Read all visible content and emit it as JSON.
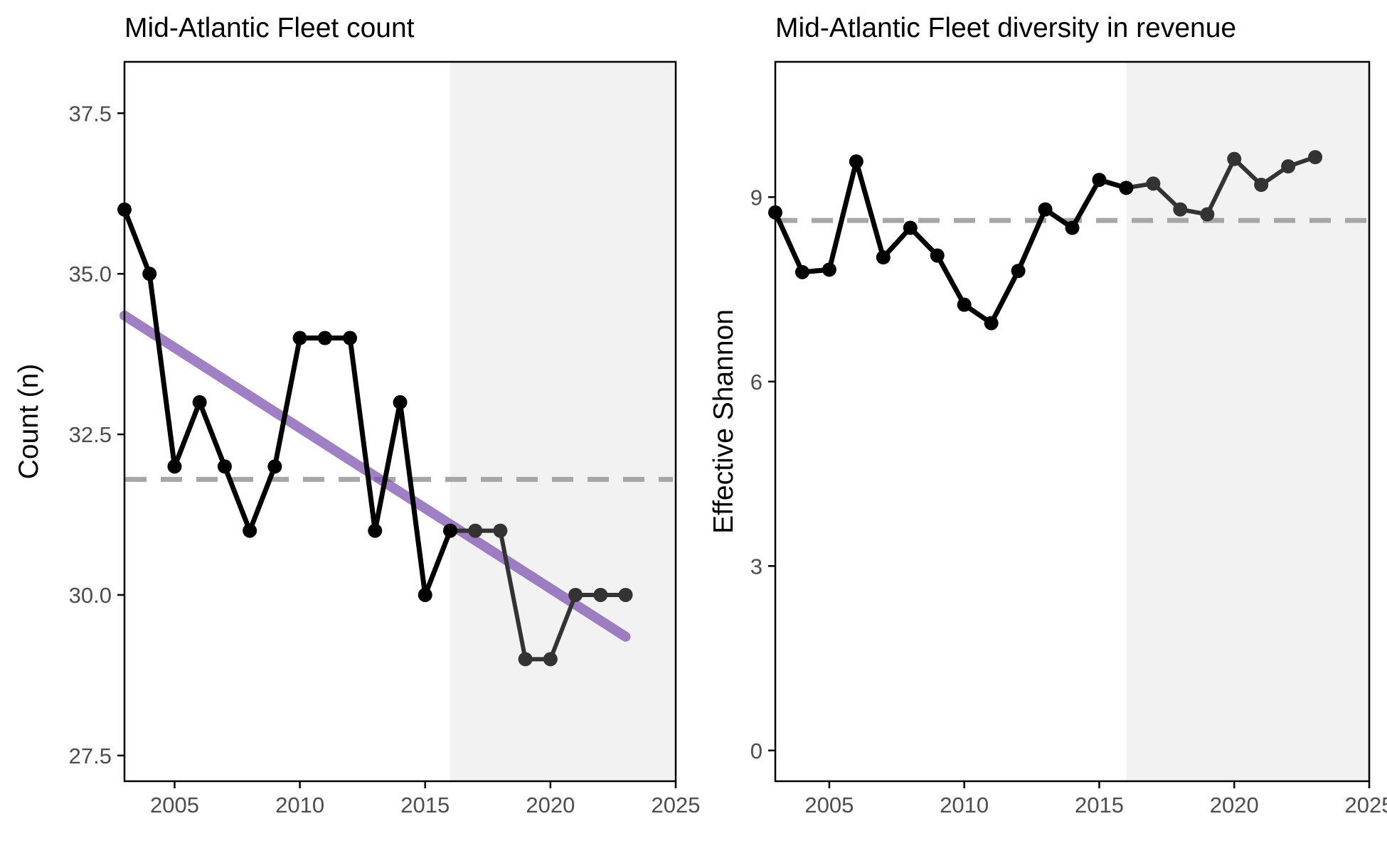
{
  "chart_data": [
    {
      "type": "line",
      "title": "Mid-Atlantic Fleet count",
      "xlabel": "",
      "ylabel": "Count (n)",
      "xlim": [
        2003,
        2025
      ],
      "ylim": [
        27.1,
        38.3
      ],
      "x_ticks": [
        "2005",
        "2010",
        "2015",
        "2020",
        "2025"
      ],
      "y_ticks": [
        "27.5",
        "30.0",
        "32.5",
        "35.0",
        "37.5"
      ],
      "grid": false,
      "legend": "none",
      "shaded_region": {
        "x_start": 2016,
        "x_end": 2025,
        "color": "#f2f2f2"
      },
      "mean_line": {
        "y": 31.8,
        "style": "dashed",
        "color": "#a6a6a6"
      },
      "trend_line": {
        "x": [
          2003,
          2023
        ],
        "y": [
          34.35,
          29.35
        ],
        "color": "#7b4fae"
      },
      "series": [
        {
          "x": [
            2003,
            2004,
            2005,
            2006,
            2007,
            2008,
            2009,
            2010,
            2011,
            2012,
            2013,
            2014,
            2015,
            2016,
            2017,
            2018,
            2019,
            2020,
            2021,
            2022,
            2023
          ],
          "values": [
            36,
            35,
            32,
            33,
            32,
            31,
            32,
            34,
            34,
            34,
            31,
            33,
            30,
            31,
            31,
            31,
            29,
            29,
            30,
            30,
            30
          ]
        }
      ]
    },
    {
      "type": "line",
      "title": "Mid-Atlantic Fleet diversity in revenue",
      "xlabel": "",
      "ylabel": "Effective Shannon",
      "xlim": [
        2003,
        2025
      ],
      "ylim": [
        -0.5,
        11.2
      ],
      "x_ticks": [
        "2005",
        "2010",
        "2015",
        "2020",
        "2025"
      ],
      "y_ticks": [
        "0",
        "3",
        "6",
        "9"
      ],
      "grid": false,
      "legend": "none",
      "shaded_region": {
        "x_start": 2016,
        "x_end": 2025,
        "color": "#f2f2f2"
      },
      "mean_line": {
        "y": 8.62,
        "style": "dashed",
        "color": "#a6a6a6"
      },
      "series": [
        {
          "x": [
            2003,
            2004,
            2005,
            2006,
            2007,
            2008,
            2009,
            2010,
            2011,
            2012,
            2013,
            2014,
            2015,
            2016,
            2017,
            2018,
            2019,
            2020,
            2021,
            2022,
            2023
          ],
          "values": [
            8.75,
            7.78,
            7.82,
            9.58,
            8.02,
            8.5,
            8.05,
            7.25,
            6.95,
            7.8,
            8.8,
            8.5,
            9.28,
            9.15,
            9.22,
            8.8,
            8.72,
            9.62,
            9.2,
            9.5,
            9.65
          ]
        }
      ]
    }
  ],
  "colors": {
    "line_pre": "#000000",
    "line_post": "#333333",
    "axis": "#000000",
    "tick_text": "#4d4d4d"
  }
}
